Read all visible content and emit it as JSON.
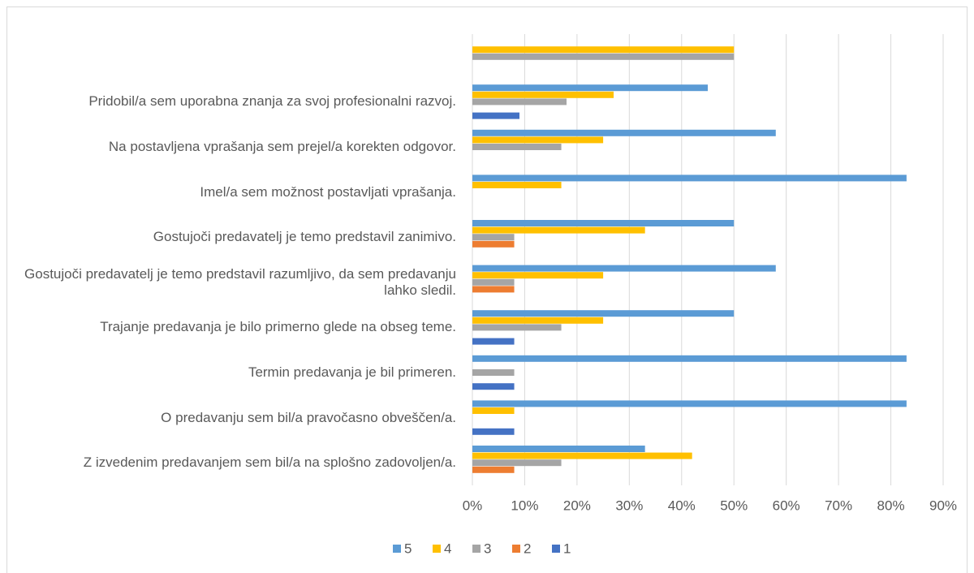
{
  "chart_data": {
    "type": "hbar",
    "categories": [
      null,
      "Pridobil/a sem uporabna znanja za svoj profesionalni razvoj.",
      "Na postavljena vprašanja sem prejel/a korekten odgovor.",
      "Imel/a sem možnost postavljati vprašanja.",
      "Gostujoči predavatelj je temo predstavil zanimivo.",
      "Gostujoči predavatelj je temo predstavil razumljivo, da sem predavanju lahko sledil.",
      "Trajanje predavanja je bilo primerno glede na obseg teme.",
      "Termin predavanja je bil primeren.",
      "O predavanju sem bil/a pravočasno obveščen/a.",
      "Z izvedenim predavanjem sem bil/a na splošno zadovoljen/a."
    ],
    "series": [
      {
        "name": "5",
        "color": "#5b9bd5",
        "values": [
          0,
          45,
          58,
          83,
          50,
          58,
          50,
          83,
          83,
          33
        ]
      },
      {
        "name": "4",
        "color": "#ffc000",
        "values": [
          50,
          27,
          25,
          17,
          33,
          25,
          25,
          0,
          8,
          42
        ]
      },
      {
        "name": "3",
        "color": "#a5a5a5",
        "values": [
          50,
          18,
          17,
          0,
          8,
          8,
          17,
          8,
          0,
          17
        ]
      },
      {
        "name": "2",
        "color": "#ed7d31",
        "values": [
          0,
          0,
          0,
          0,
          8,
          8,
          0,
          0,
          0,
          8
        ]
      },
      {
        "name": "1",
        "color": "#4472c4",
        "values": [
          0,
          9,
          0,
          0,
          0,
          0,
          8,
          8,
          8,
          0
        ]
      }
    ],
    "xlim": [
      0,
      90
    ],
    "xticks": [
      {
        "value": 0,
        "label": "0%"
      },
      {
        "value": 10,
        "label": "10%"
      },
      {
        "value": 20,
        "label": "20%"
      },
      {
        "value": 30,
        "label": "30%"
      },
      {
        "value": 40,
        "label": "40%"
      },
      {
        "value": 50,
        "label": "50%"
      },
      {
        "value": 60,
        "label": "60%"
      },
      {
        "value": 70,
        "label": "70%"
      },
      {
        "value": 80,
        "label": "80%"
      },
      {
        "value": 90,
        "label": "90%"
      }
    ],
    "grid": true,
    "legend": "bottom"
  }
}
